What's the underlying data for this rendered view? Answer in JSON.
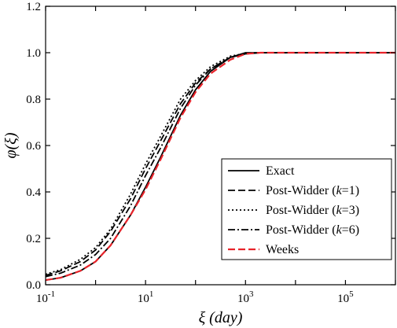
{
  "chart_data": {
    "type": "line",
    "xlabel": "ξ  (day)",
    "ylabel": "φ(ξ)",
    "x_scale": "log",
    "xlim": [
      0.1,
      1000000
    ],
    "ylim": [
      0.0,
      1.2
    ],
    "x_ticks": [
      {
        "value": 0.1,
        "base": "10",
        "exp": "-1"
      },
      {
        "value": 10,
        "base": "10",
        "exp": "1"
      },
      {
        "value": 1000,
        "base": "10",
        "exp": "3"
      },
      {
        "value": 100000,
        "base": "10",
        "exp": "5"
      }
    ],
    "y_ticks": [
      "0.0",
      "0.2",
      "0.4",
      "0.6",
      "0.8",
      "1.0",
      "1.2"
    ],
    "grid": false,
    "legend_position": "bottom-right",
    "series": [
      {
        "name": "Exact",
        "color": "#000000",
        "style": "solid",
        "x": [
          0.1,
          0.2,
          0.5,
          1,
          2,
          5,
          10,
          20,
          50,
          100,
          200,
          500,
          1000,
          2000,
          10000,
          1000000
        ],
        "y": [
          0.02,
          0.03,
          0.06,
          0.1,
          0.17,
          0.3,
          0.42,
          0.55,
          0.73,
          0.84,
          0.92,
          0.98,
          1.0,
          1.0,
          1.0,
          1.0
        ]
      },
      {
        "name": "Post-Widder (k=1)",
        "color": "#000000",
        "style": "dashed",
        "x": [
          0.1,
          0.2,
          0.5,
          1,
          2,
          5,
          10,
          20,
          50,
          100,
          200,
          500,
          1000,
          2000,
          10000,
          1000000
        ],
        "y": [
          0.04,
          0.06,
          0.1,
          0.15,
          0.23,
          0.37,
          0.5,
          0.62,
          0.78,
          0.87,
          0.93,
          0.98,
          0.995,
          1.0,
          1.0,
          1.0
        ]
      },
      {
        "name": "Post-Widder (k=3)",
        "color": "#000000",
        "style": "dotted",
        "x": [
          0.1,
          0.2,
          0.5,
          1,
          2,
          5,
          10,
          20,
          50,
          100,
          200,
          500,
          1000,
          2000,
          10000,
          1000000
        ],
        "y": [
          0.045,
          0.065,
          0.11,
          0.16,
          0.24,
          0.39,
          0.52,
          0.64,
          0.8,
          0.88,
          0.94,
          0.985,
          0.997,
          1.0,
          1.0,
          1.0
        ]
      },
      {
        "name": "Post-Widder (k=6)",
        "color": "#000000",
        "style": "dashdot",
        "x": [
          0.1,
          0.2,
          0.5,
          1,
          2,
          5,
          10,
          20,
          50,
          100,
          200,
          500,
          1000,
          2000,
          10000,
          1000000
        ],
        "y": [
          0.035,
          0.05,
          0.085,
          0.13,
          0.2,
          0.34,
          0.47,
          0.59,
          0.76,
          0.86,
          0.93,
          0.98,
          0.997,
          1.0,
          1.0,
          1.0
        ]
      },
      {
        "name": "Weeks",
        "color": "#e8232a",
        "style": "dashed",
        "x": [
          0.1,
          0.2,
          0.5,
          1,
          2,
          5,
          10,
          20,
          50,
          100,
          200,
          500,
          1000,
          2000,
          10000,
          1000000
        ],
        "y": [
          0.02,
          0.03,
          0.06,
          0.1,
          0.17,
          0.3,
          0.41,
          0.54,
          0.72,
          0.83,
          0.91,
          0.97,
          0.995,
          1.0,
          1.0,
          1.0
        ]
      }
    ],
    "legend": [
      {
        "label": "Exact",
        "pre": "Exact",
        "k": "",
        "post": ""
      },
      {
        "label": "Post-Widder (k=1)",
        "pre": "Post-Widder (",
        "k": "k",
        "post": "=1)"
      },
      {
        "label": "Post-Widder (k=3)",
        "pre": "Post-Widder (",
        "k": "k",
        "post": "=3)"
      },
      {
        "label": "Post-Widder (k=6)",
        "pre": "Post-Widder (",
        "k": "k",
        "post": "=6)"
      },
      {
        "label": "Weeks",
        "pre": "Weeks",
        "k": "",
        "post": ""
      }
    ]
  }
}
